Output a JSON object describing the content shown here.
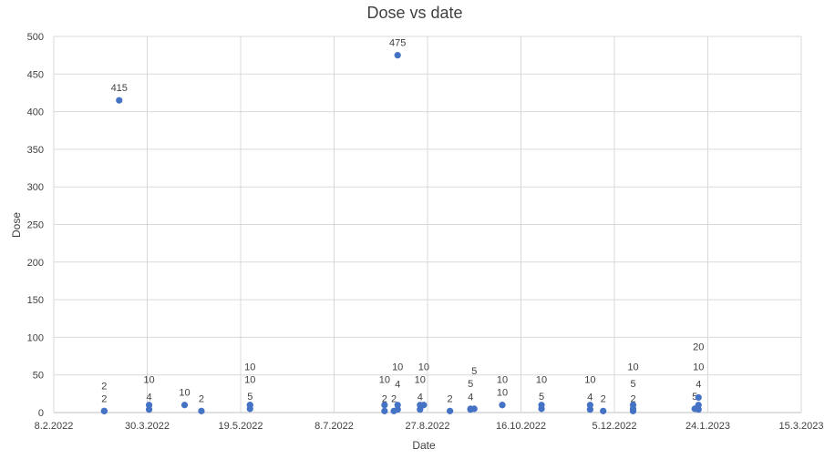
{
  "chart_data": {
    "type": "scatter",
    "title": "Dose vs date",
    "xlabel": "Date",
    "ylabel": "Dose",
    "xlim": [
      "8.2.2022",
      "15.3.2023"
    ],
    "ylim": [
      0,
      500
    ],
    "x_ticks": [
      "8.2.2022",
      "30.3.2022",
      "19.5.2022",
      "8.7.2022",
      "27.8.2022",
      "16.10.2022",
      "5.12.2022",
      "24.1.2023",
      "15.3.2023"
    ],
    "y_ticks": [
      0,
      50,
      100,
      150,
      200,
      250,
      300,
      350,
      400,
      450,
      500
    ],
    "grid": true,
    "legend": "none",
    "marker_color": "#4472C4",
    "points": [
      {
        "x": "7.3.2022",
        "y": 2
      },
      {
        "x": "7.3.2022",
        "y": 2
      },
      {
        "x": "15.3.2022",
        "y": 415
      },
      {
        "x": "31.3.2022",
        "y": 10
      },
      {
        "x": "31.3.2022",
        "y": 4
      },
      {
        "x": "19.4.2022",
        "y": 10
      },
      {
        "x": "28.4.2022",
        "y": 2
      },
      {
        "x": "24.5.2022",
        "y": 10
      },
      {
        "x": "24.5.2022",
        "y": 10
      },
      {
        "x": "24.5.2022",
        "y": 5
      },
      {
        "x": "4.8.2022",
        "y": 10
      },
      {
        "x": "4.8.2022",
        "y": 2
      },
      {
        "x": "9.8.2022",
        "y": 2
      },
      {
        "x": "11.8.2022",
        "y": 10
      },
      {
        "x": "11.8.2022",
        "y": 4
      },
      {
        "x": "11.8.2022",
        "y": 475
      },
      {
        "x": "23.8.2022",
        "y": 10
      },
      {
        "x": "23.8.2022",
        "y": 4
      },
      {
        "x": "25.8.2022",
        "y": 10
      },
      {
        "x": "8.9.2022",
        "y": 2
      },
      {
        "x": "19.9.2022",
        "y": 5
      },
      {
        "x": "19.9.2022",
        "y": 4
      },
      {
        "x": "21.9.2022",
        "y": 5
      },
      {
        "x": "6.10.2022",
        "y": 10
      },
      {
        "x": "6.10.2022",
        "y": 10
      },
      {
        "x": "27.10.2022",
        "y": 10
      },
      {
        "x": "27.10.2022",
        "y": 5
      },
      {
        "x": "22.11.2022",
        "y": 10
      },
      {
        "x": "22.11.2022",
        "y": 4
      },
      {
        "x": "29.11.2022",
        "y": 2
      },
      {
        "x": "15.12.2022",
        "y": 10
      },
      {
        "x": "15.12.2022",
        "y": 5
      },
      {
        "x": "15.12.2022",
        "y": 2
      },
      {
        "x": "17.1.2023",
        "y": 5
      },
      {
        "x": "19.1.2023",
        "y": 20
      },
      {
        "x": "19.1.2023",
        "y": 10
      },
      {
        "x": "19.1.2023",
        "y": 4
      }
    ]
  }
}
